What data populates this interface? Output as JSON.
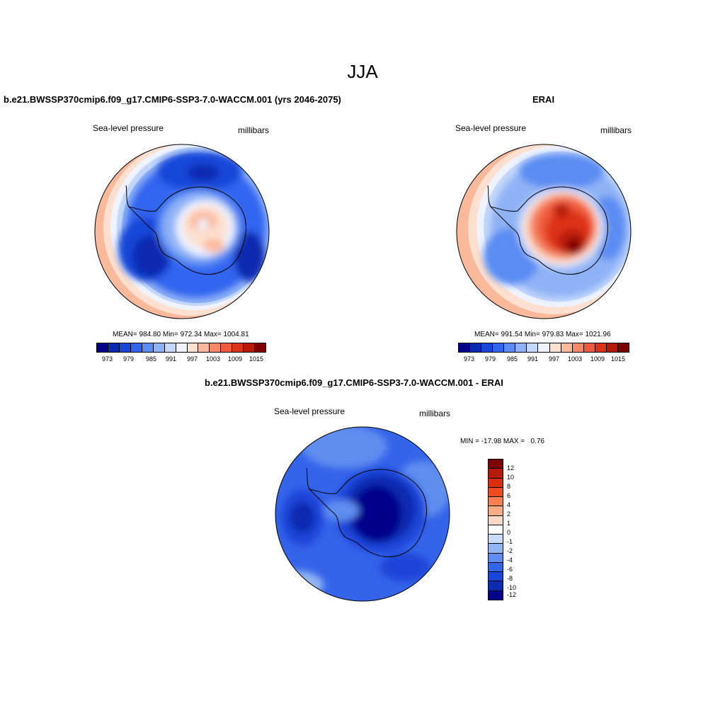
{
  "main_title": "JJA",
  "panels": [
    {
      "title": "b.e21.BWSSP370cmip6.f09_g17.CMIP6-SSP3-7.0-WACCM.001 (yrs 2046-2075)",
      "variable": "Sea-level pressure",
      "units": "millibars",
      "stats": "MEAN= 984.80  Min= 972.34  Max= 1004.81",
      "colorbar_labels": [
        "973",
        "979",
        "985",
        "991",
        "997",
        "1003",
        "1009",
        "1015"
      ]
    },
    {
      "title": "ERAI",
      "variable": "Sea-level pressure",
      "units": "millibars",
      "stats": "MEAN= 991.54  Min= 979.83  Max= 1021.96",
      "colorbar_labels": [
        "973",
        "979",
        "985",
        "991",
        "997",
        "1003",
        "1009",
        "1015"
      ]
    },
    {
      "title": "b.e21.BWSSP370cmip6.f09_g17.CMIP6-SSP3-7.0-WACCM.001 - ERAI",
      "variable": "Sea-level pressure",
      "units": "millibars",
      "stats": "MIN = -17.98 MAX =   0.76",
      "colorbar_labels": [
        "12",
        "10",
        "8",
        "6",
        "4",
        "2",
        "1",
        "0",
        "-1",
        "-2",
        "-4",
        "-6",
        "-8",
        "-10",
        "-12"
      ]
    }
  ],
  "colors": {
    "abs_scale": [
      "#00008b",
      "#0a2bb0",
      "#1747d8",
      "#3065f0",
      "#5a8cf2",
      "#8fb2f6",
      "#c4d8fb",
      "#eef3ff",
      "#fde0cf",
      "#fbb99c",
      "#f68a68",
      "#ee5a3a",
      "#dc3218",
      "#b81a0a",
      "#7d0000"
    ],
    "diff_scale": [
      "#7d0000",
      "#b51a0a",
      "#d8300f",
      "#ef4d1f",
      "#f6804f",
      "#f9ad87",
      "#fcd9c4",
      "#ffffff",
      "#c8dbfa",
      "#93b5f3",
      "#5e8eef",
      "#3464ea",
      "#1a45d8",
      "#0b2cb0",
      "#00008b"
    ],
    "background": "#ffffff"
  }
}
